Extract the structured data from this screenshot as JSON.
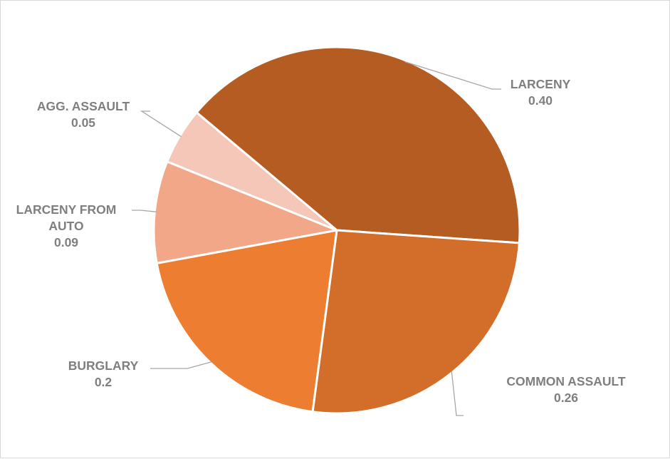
{
  "chart_data": {
    "type": "pie",
    "slices": [
      {
        "label": "LARCENY",
        "value_label": "0.40",
        "value": 0.4,
        "color": "#b45c21"
      },
      {
        "label": "COMMON ASSAULT",
        "value_label": "0.26",
        "value": 0.26,
        "color": "#d26d2a"
      },
      {
        "label": "BURGLARY",
        "value_label": "0.2",
        "value": 0.2,
        "color": "#ed7d31"
      },
      {
        "label": "LARCENY FROM AUTO",
        "value_label": "0.09",
        "value": 0.09,
        "color": "#f1a788"
      },
      {
        "label": "AGG. ASSAULT",
        "value_label": "0.05",
        "value": 0.05,
        "color": "#f4c7b8"
      }
    ],
    "legend": "none",
    "data_labels": "outside-with-leader-lines"
  }
}
